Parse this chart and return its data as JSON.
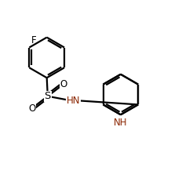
{
  "bg_color": "#ffffff",
  "bond_color": "#000000",
  "hn_color": "#8B2500",
  "f_color": "#000000",
  "s_color": "#000000",
  "o_color": "#000000",
  "line_width": 1.6,
  "figsize": [
    2.27,
    2.5
  ],
  "dpi": 100,
  "xlim": [
    0,
    10
  ],
  "ylim": [
    0,
    11
  ]
}
